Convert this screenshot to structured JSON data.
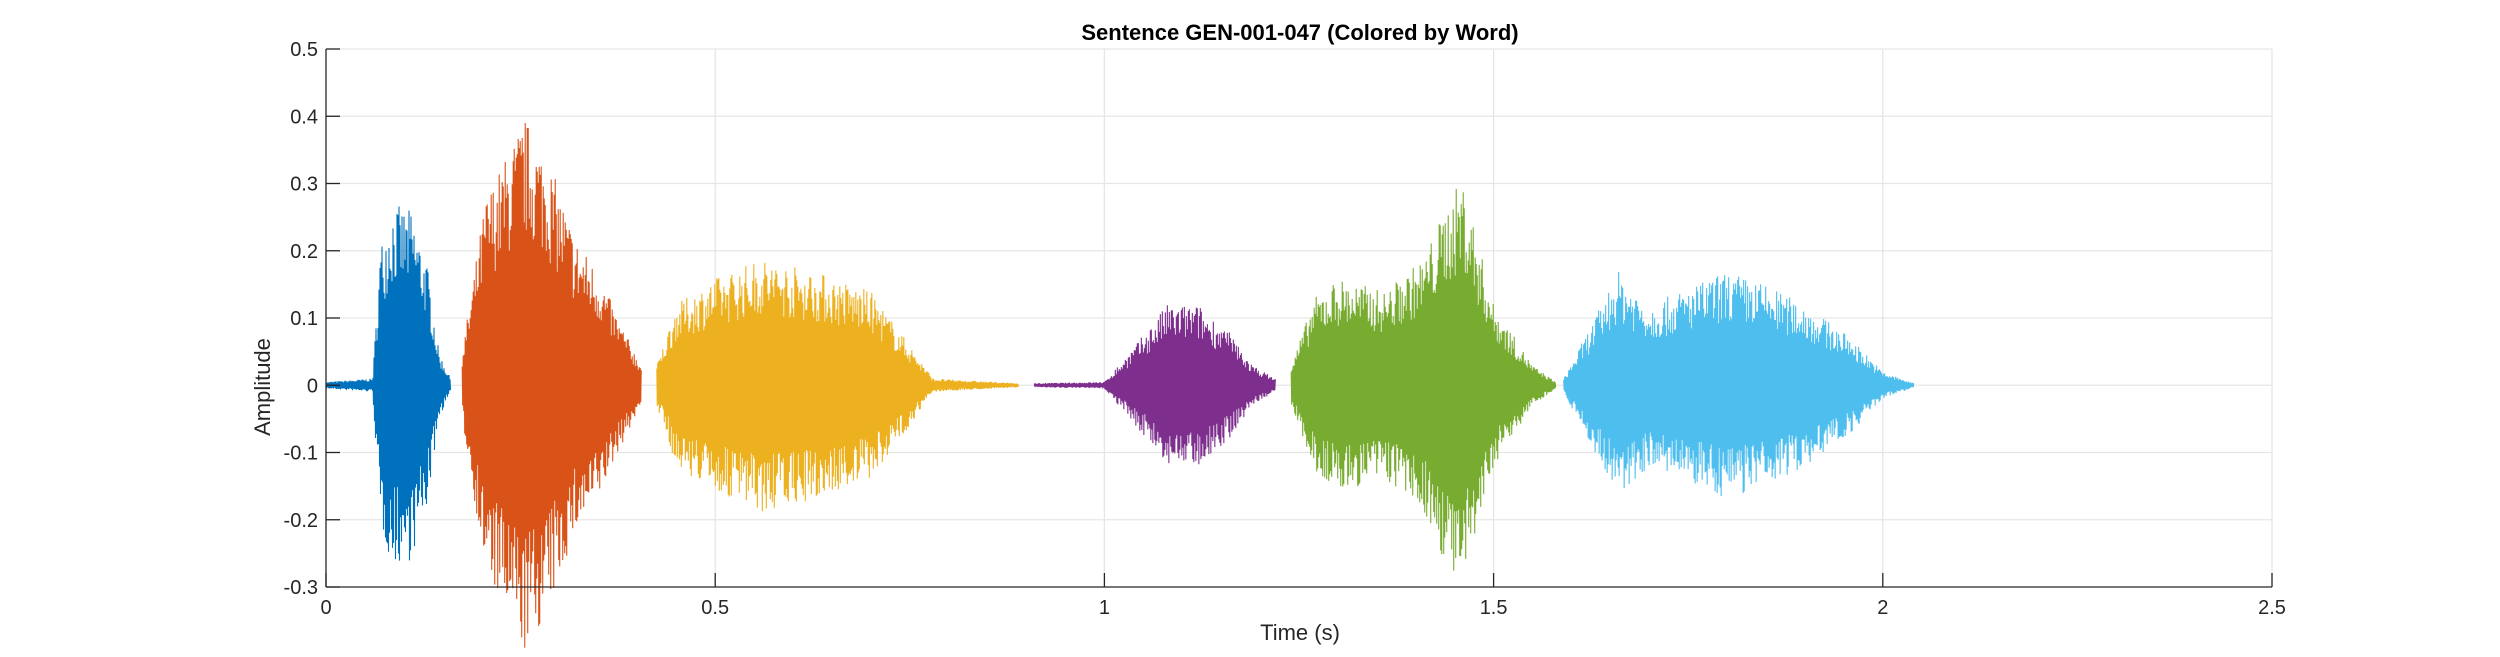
{
  "chart_data": {
    "type": "line",
    "title": "Sentence GEN-001-047 (Colored by Word)",
    "xlabel": "Time (s)",
    "ylabel": "Amplitude",
    "xlim": [
      0,
      2.5
    ],
    "ylim": [
      -0.3,
      0.5
    ],
    "x_ticks": [
      0,
      0.5,
      1,
      1.5,
      2,
      2.5
    ],
    "x_tick_labels": [
      "0",
      "0.5",
      "1",
      "1.5",
      "2",
      "2.5"
    ],
    "y_ticks": [
      -0.3,
      -0.2,
      -0.1,
      0,
      0.1,
      0.2,
      0.3,
      0.4,
      0.5
    ],
    "y_tick_labels": [
      "-0.3",
      "-0.2",
      "-0.1",
      "0",
      "0.1",
      "0.2",
      "0.3",
      "0.4",
      "0.5"
    ],
    "grid": true,
    "legend": "none",
    "series": [
      {
        "color": "#0072BD",
        "start": 0.0,
        "end": 0.16,
        "envelope": [
          [
            0.0,
            0.005
          ],
          [
            0.06,
            0.01
          ],
          [
            0.07,
            0.21
          ],
          [
            0.085,
            0.27
          ],
          [
            0.11,
            0.26
          ],
          [
            0.13,
            0.18
          ],
          [
            0.145,
            0.05
          ],
          [
            0.16,
            0.01
          ]
        ]
      },
      {
        "color": "#D95319",
        "start": 0.175,
        "end": 0.405,
        "envelope": [
          [
            0.175,
            0.05
          ],
          [
            0.205,
            0.28
          ],
          [
            0.235,
            0.35
          ],
          [
            0.255,
            0.4
          ],
          [
            0.285,
            0.34
          ],
          [
            0.32,
            0.22
          ],
          [
            0.35,
            0.17
          ],
          [
            0.375,
            0.1
          ],
          [
            0.405,
            0.03
          ]
        ]
      },
      {
        "color": "#EDB120",
        "start": 0.425,
        "end": 0.89,
        "envelope": [
          [
            0.425,
            0.03
          ],
          [
            0.45,
            0.12
          ],
          [
            0.5,
            0.16
          ],
          [
            0.56,
            0.19
          ],
          [
            0.63,
            0.17
          ],
          [
            0.7,
            0.14
          ],
          [
            0.75,
            0.06
          ],
          [
            0.78,
            0.01
          ],
          [
            0.89,
            0.003
          ]
        ]
      },
      {
        "color": "#7E2F8E",
        "start": 0.91,
        "end": 1.22,
        "envelope": [
          [
            0.91,
            0.003
          ],
          [
            1.0,
            0.005
          ],
          [
            1.04,
            0.06
          ],
          [
            1.08,
            0.12
          ],
          [
            1.12,
            0.12
          ],
          [
            1.16,
            0.08
          ],
          [
            1.19,
            0.03
          ],
          [
            1.22,
            0.01
          ]
        ]
      },
      {
        "color": "#77AC30",
        "start": 1.24,
        "end": 1.58,
        "envelope": [
          [
            1.24,
            0.03
          ],
          [
            1.27,
            0.13
          ],
          [
            1.3,
            0.16
          ],
          [
            1.36,
            0.14
          ],
          [
            1.41,
            0.19
          ],
          [
            1.44,
            0.27
          ],
          [
            1.46,
            0.31
          ],
          [
            1.5,
            0.12
          ],
          [
            1.55,
            0.03
          ],
          [
            1.58,
            0.005
          ]
        ]
      },
      {
        "color": "#4DBEEE",
        "start": 1.59,
        "end": 2.04,
        "envelope": [
          [
            1.59,
            0.01
          ],
          [
            1.63,
            0.1
          ],
          [
            1.66,
            0.17
          ],
          [
            1.7,
            0.12
          ],
          [
            1.76,
            0.15
          ],
          [
            1.8,
            0.17
          ],
          [
            1.85,
            0.15
          ],
          [
            1.9,
            0.12
          ],
          [
            1.96,
            0.07
          ],
          [
            2.0,
            0.02
          ],
          [
            2.04,
            0.003
          ]
        ]
      }
    ]
  }
}
